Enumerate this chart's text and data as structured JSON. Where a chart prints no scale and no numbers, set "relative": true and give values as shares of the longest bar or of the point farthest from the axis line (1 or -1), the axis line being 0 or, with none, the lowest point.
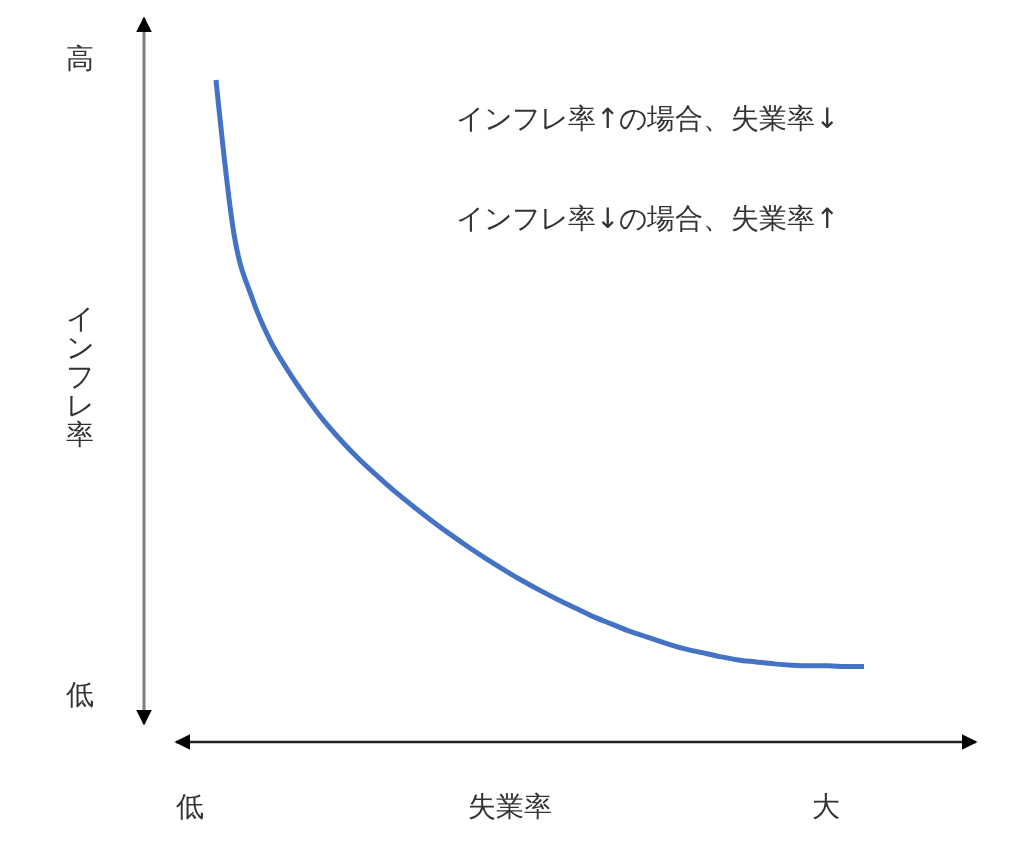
{
  "chart_data": {
    "type": "line",
    "relative": true,
    "xlabel": "失業率",
    "ylabel": "インフレ率",
    "annotations": [
      "インフレ率↑の場合、失業率↓",
      "インフレ率↓の場合、失業率↑",
      "高",
      "低",
      "低",
      "大"
    ],
    "categories": [
      null,
      null,
      null,
      null,
      null,
      null,
      null,
      null,
      null,
      null,
      null,
      null,
      null,
      null,
      null,
      null,
      null,
      null,
      null,
      null,
      null,
      null,
      null,
      null,
      null,
      null,
      null,
      null,
      null,
      null,
      null,
      null,
      null,
      null,
      null,
      null,
      null
    ],
    "series": [
      {
        "color": "#4472c4",
        "values": [
          1,
          0.767,
          0.671,
          0.607,
          0.561,
          0.521,
          0.485,
          0.454,
          0.426,
          0.401,
          0.377,
          0.355,
          0.334,
          0.314,
          0.295,
          0.277,
          0.26,
          0.244,
          0.229,
          0.215,
          0.202,
          0.189,
          0.178,
          0.167,
          0.158,
          0.149,
          0.141,
          0.135,
          0.129,
          0.124,
          0.121,
          0.118,
          0.116,
          0.115,
          0.115,
          0.114,
          0.114
        ]
      }
    ]
  }
}
